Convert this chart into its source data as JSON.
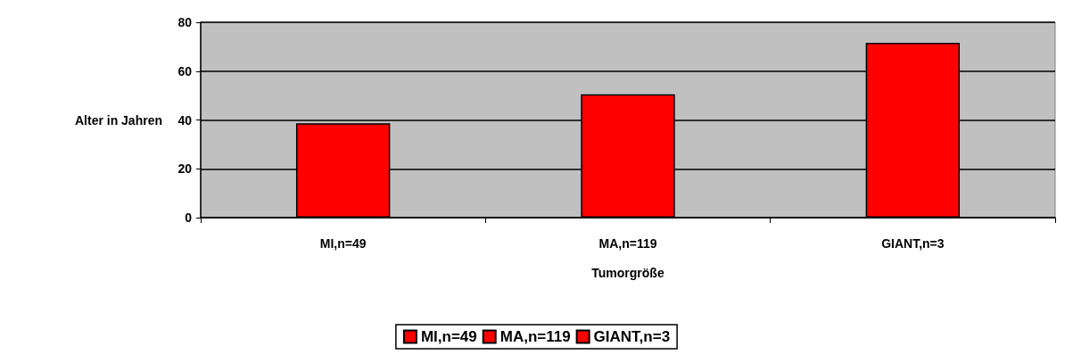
{
  "chart_data": {
    "type": "bar",
    "xlabel": "Tumorgröße",
    "ylabel": "Alter in Jahren",
    "categories": [
      "MI,n=49",
      "MA,n=119",
      "GIANT,n=3"
    ],
    "series": [
      {
        "name": "MI,n=49",
        "color": "#ff0000",
        "values": [
          38.6,
          null,
          null
        ]
      },
      {
        "name": "MA,n=119",
        "color": "#ff0000",
        "values": [
          null,
          50.5,
          null
        ]
      },
      {
        "name": "GIANT,n=3",
        "color": "#ff0000",
        "values": [
          null,
          null,
          71.6
        ]
      }
    ],
    "ylim": [
      0,
      80
    ],
    "yticks": [
      0,
      20,
      40,
      60,
      80
    ],
    "grid": "y",
    "legend": "bottom"
  }
}
